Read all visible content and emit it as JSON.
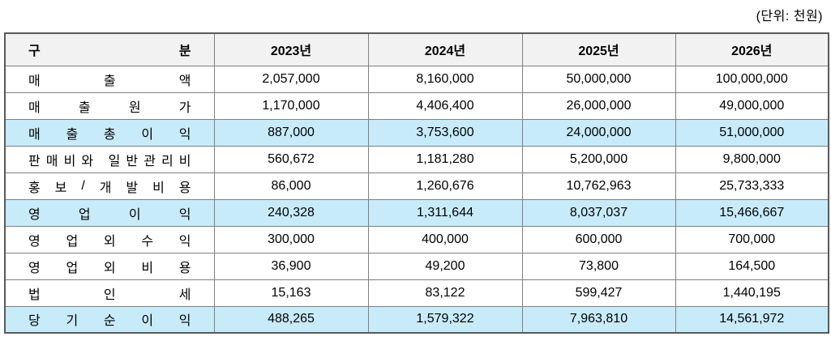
{
  "unit_note": "(단위: 천원)",
  "table": {
    "header": {
      "category_label": "구분",
      "year_columns": [
        "2023년",
        "2024년",
        "2025년",
        "2026년"
      ]
    },
    "rows": [
      {
        "label": "매출액",
        "highlight": false,
        "values": [
          "2,057,000",
          "8,160,000",
          "50,000,000",
          "100,000,000"
        ]
      },
      {
        "label": "매출원가",
        "highlight": false,
        "values": [
          "1,170,000",
          "4,406,400",
          "26,000,000",
          "49,000,000"
        ]
      },
      {
        "label": "매출총이익",
        "highlight": true,
        "values": [
          "887,000",
          "3,753,600",
          "24,000,000",
          "51,000,000"
        ]
      },
      {
        "label": "판매비와 일반관리비",
        "highlight": false,
        "values": [
          "560,672",
          "1,181,280",
          "5,200,000",
          "9,800,000"
        ]
      },
      {
        "label": "홍보/개발비용",
        "highlight": false,
        "values": [
          "86,000",
          "1,260,676",
          "10,762,963",
          "25,733,333"
        ]
      },
      {
        "label": "영업이익",
        "highlight": true,
        "values": [
          "240,328",
          "1,311,644",
          "8,037,037",
          "15,466,667"
        ]
      },
      {
        "label": "영업외수익",
        "highlight": false,
        "values": [
          "300,000",
          "400,000",
          "600,000",
          "700,000"
        ]
      },
      {
        "label": "영업외비용",
        "highlight": false,
        "values": [
          "36,900",
          "49,200",
          "73,800",
          "164,500"
        ]
      },
      {
        "label": "법인세",
        "highlight": false,
        "values": [
          "15,163",
          "83,122",
          "599,427",
          "1,440,195"
        ]
      },
      {
        "label": "당기순이익",
        "highlight": true,
        "values": [
          "488,265",
          "1,579,322",
          "7,963,810",
          "14,561,972"
        ]
      }
    ]
  },
  "colors": {
    "highlight_bg": "#c8ebfa",
    "header_bg": "#f2f2f2",
    "border_outer": "#595959",
    "border_inner": "#808080"
  }
}
